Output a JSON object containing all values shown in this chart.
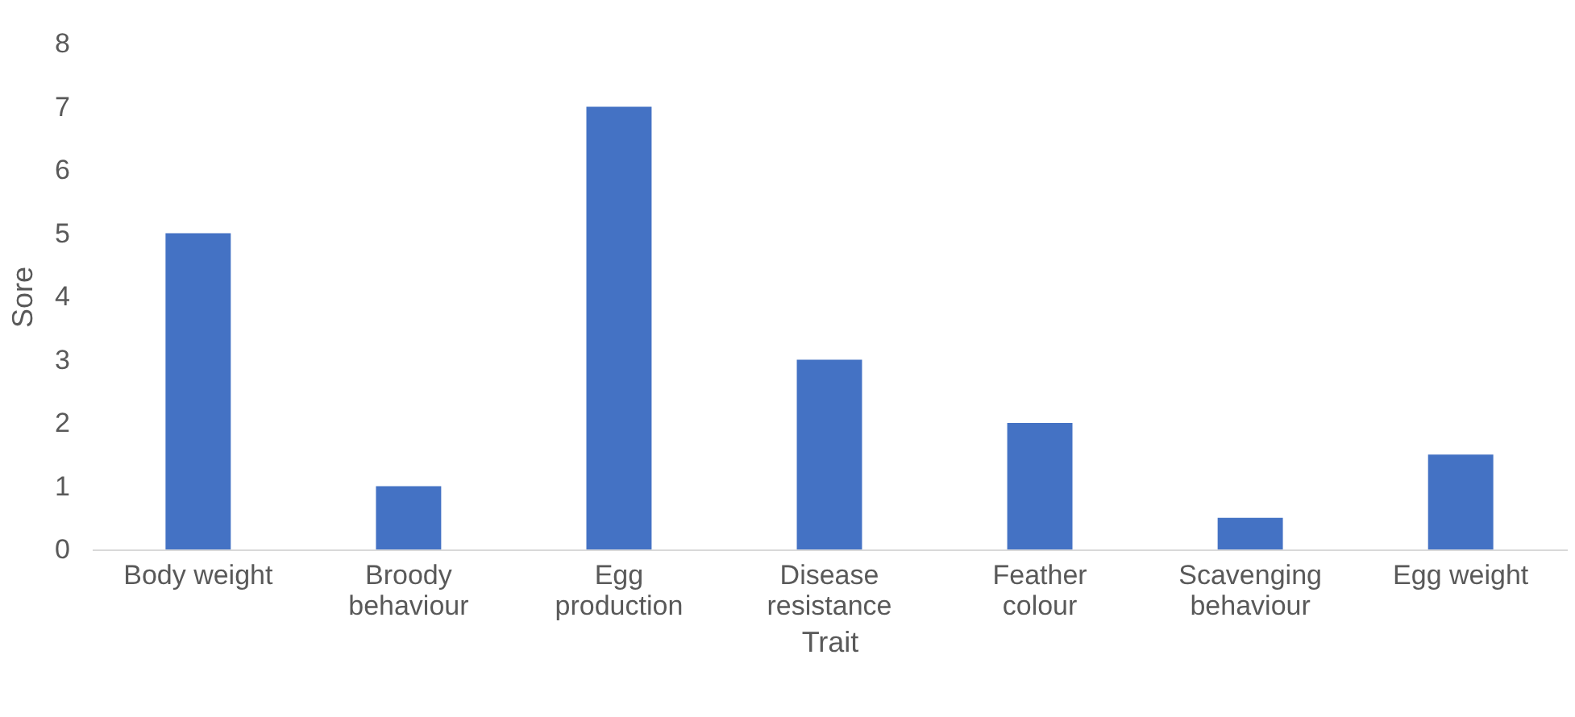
{
  "chart_data": {
    "type": "bar",
    "xlabel": "Trait",
    "ylabel": "Sore",
    "categories": [
      "Body weight",
      "Broody behaviour",
      "Egg production",
      "Disease resistance",
      "Feather colour",
      "Scavenging behaviour",
      "Egg weight"
    ],
    "values": [
      5,
      1,
      7,
      3,
      2,
      0.5,
      1.5
    ],
    "color": "#4472c4",
    "ylim": [
      0,
      8
    ],
    "yticks": [
      0,
      1,
      2,
      3,
      4,
      5,
      6,
      7,
      8
    ],
    "grid": false
  }
}
